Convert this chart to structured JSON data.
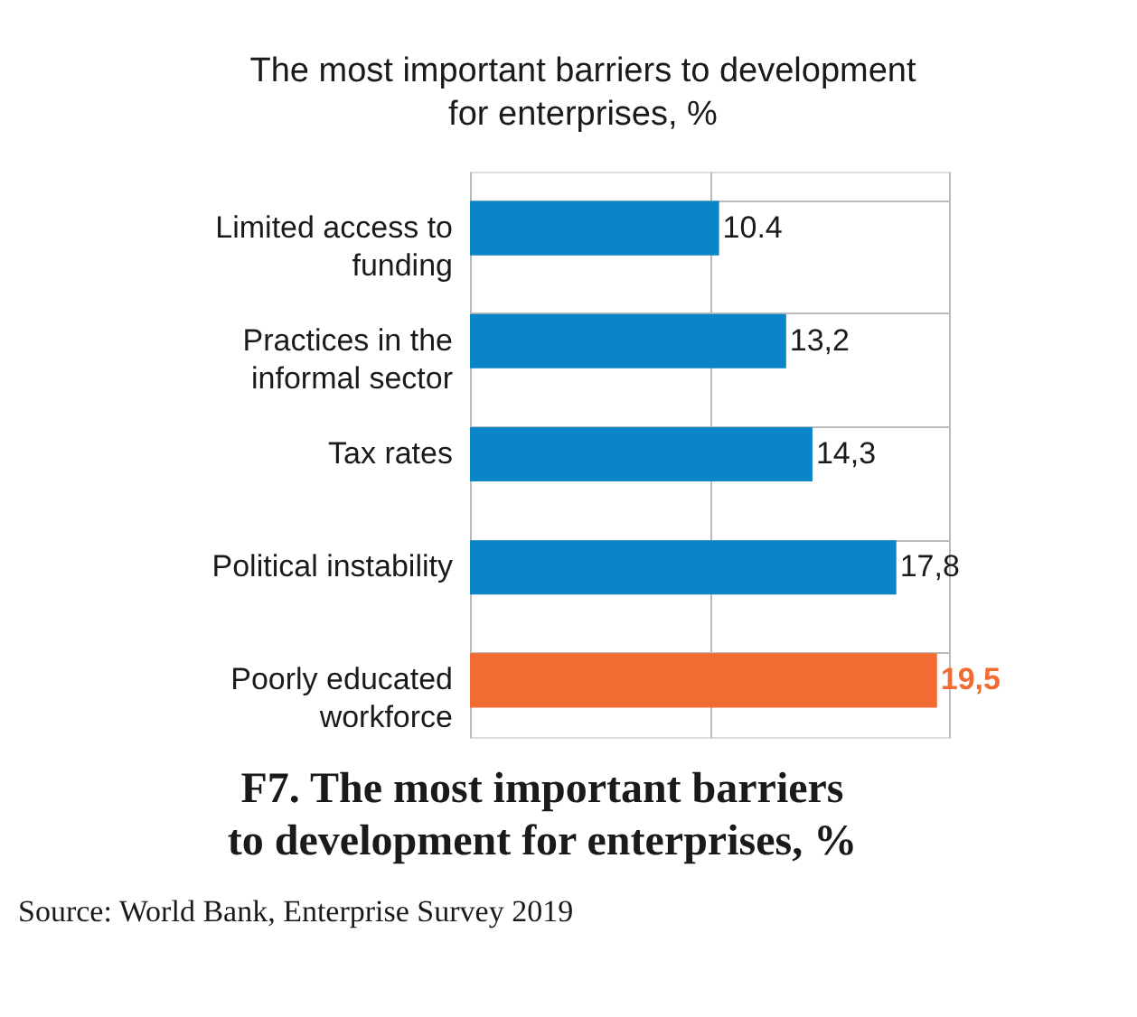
{
  "chart_data": {
    "type": "bar",
    "orientation": "horizontal",
    "title": [
      "The most important barriers to development",
      "for enterprises, %"
    ],
    "categories": [
      "Limited access to funding",
      "Practices in the informal sector",
      "Tax rates",
      "Political instability",
      "Poorly educated workforce"
    ],
    "values": [
      10.4,
      13.2,
      14.3,
      17.8,
      19.5
    ],
    "value_labels": [
      "10.4",
      "13,2",
      "14,3",
      "17,8",
      "19,5"
    ],
    "colors": [
      "#0a85c7",
      "#0a85c7",
      "#0a85c7",
      "#0a85c7",
      "#f26b32"
    ],
    "xlim": [
      0,
      20
    ],
    "xticks": [
      {
        "value": 0,
        "label": null
      },
      {
        "value": 10,
        "label": null
      },
      {
        "value": 20,
        "label": null
      }
    ],
    "tick_labels": "y",
    "grid": true,
    "annotations": [
      "F7. The most important barriers to development for enterprises, %",
      "Source: World Bank, Enterprise Survey 2019"
    ]
  }
}
